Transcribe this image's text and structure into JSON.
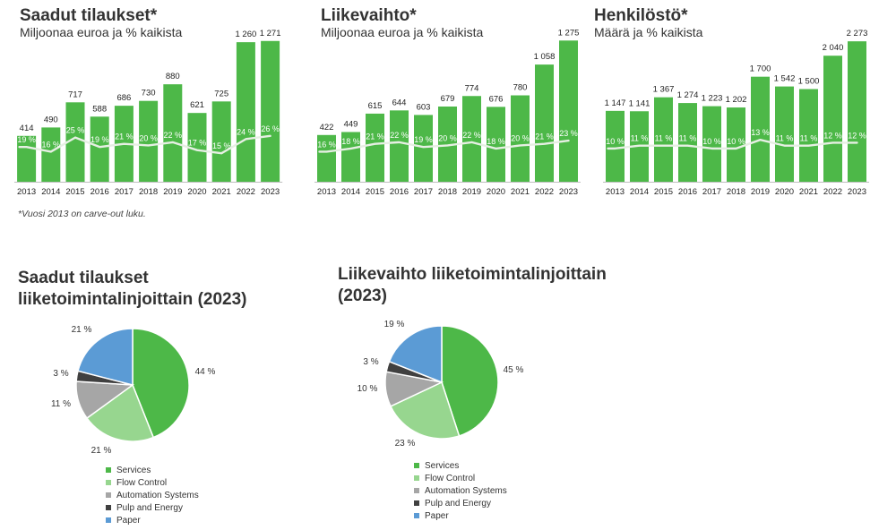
{
  "note": "*Vuosi 2013 on carve-out luku.",
  "colors": {
    "bar": "#4db848",
    "line": "#e6efe3",
    "services": "#4db848",
    "flow_control": "#97d68f",
    "automation_systems": "#a6a6a6",
    "pulp_and_energy": "#404040",
    "paper": "#5b9bd5"
  },
  "chart_data": [
    {
      "type": "bar",
      "title": "Saadut tilaukset*",
      "subtitle": "Miljoonaa euroa ja % kaikista",
      "categories": [
        "2013",
        "2014",
        "2015",
        "2016",
        "2017",
        "2018",
        "2019",
        "2020",
        "2021",
        "2022",
        "2023"
      ],
      "values": [
        414,
        490,
        717,
        588,
        686,
        730,
        880,
        621,
        725,
        1260,
        1271
      ],
      "value_labels": [
        "414",
        "490",
        "717",
        "588",
        "686",
        "730",
        "880",
        "621",
        "725",
        "1 260",
        "1 271"
      ],
      "share_pct": [
        19,
        16,
        25,
        19,
        21,
        20,
        22,
        17,
        15,
        24,
        26
      ],
      "share_labels": [
        "19 %",
        "16 %",
        "25 %",
        "19 %",
        "21 %",
        "20 %",
        "22 %",
        "17 %",
        "15 %",
        "24 %",
        "26 %"
      ],
      "ylim": [
        0,
        1350
      ]
    },
    {
      "type": "bar",
      "title": "Liikevaihto*",
      "subtitle": "Miljoonaa euroa ja % kaikista",
      "categories": [
        "2013",
        "2014",
        "2015",
        "2016",
        "2017",
        "2018",
        "2019",
        "2020",
        "2021",
        "2022",
        "2023"
      ],
      "values": [
        422,
        449,
        615,
        644,
        603,
        679,
        774,
        676,
        780,
        1058,
        1275
      ],
      "value_labels": [
        "422",
        "449",
        "615",
        "644",
        "603",
        "679",
        "774",
        "676",
        "780",
        "1 058",
        "1 275"
      ],
      "share_pct": [
        16,
        18,
        21,
        22,
        19,
        20,
        22,
        18,
        20,
        21,
        23
      ],
      "share_labels": [
        "16 %",
        "18 %",
        "21 %",
        "22 %",
        "19 %",
        "20 %",
        "22 %",
        "18 %",
        "20 %",
        "21 %",
        "23 %"
      ],
      "ylim": [
        0,
        1350
      ]
    },
    {
      "type": "bar",
      "title": "Henkilöstö*",
      "subtitle": "Määrä ja % kaikista",
      "categories": [
        "2013",
        "2014",
        "2015",
        "2016",
        "2017",
        "2018",
        "2019",
        "2020",
        "2021",
        "2022",
        "2023"
      ],
      "values": [
        1147,
        1141,
        1367,
        1274,
        1223,
        1202,
        1700,
        1542,
        1500,
        2040,
        2273
      ],
      "value_labels": [
        "1 147",
        "1 141",
        "1 367",
        "1 274",
        "1 223",
        "1 202",
        "1 700",
        "1 542",
        "1 500",
        "2 040",
        "2 273"
      ],
      "share_pct": [
        10,
        11,
        11,
        11,
        10,
        10,
        13,
        11,
        11,
        12,
        12
      ],
      "share_labels": [
        "10 %",
        "11 %",
        "11 %",
        "11 %",
        "10 %",
        "10 %",
        "13 %",
        "11 %",
        "11 %",
        "12 %",
        "12 %"
      ],
      "ylim": [
        0,
        2420
      ]
    },
    {
      "type": "pie",
      "title": "Saadut tilaukset liiketoimintalinjoittain (2023)",
      "legend": [
        "Services",
        "Flow Control",
        "Automation Systems",
        "Pulp and Energy",
        "Paper"
      ],
      "values": [
        44,
        21,
        11,
        3,
        21
      ],
      "value_labels": [
        "44 %",
        "21 %",
        "11 %",
        "3 %",
        "21 %"
      ]
    },
    {
      "type": "pie",
      "title": "Liikevaihto liiketoimintalinjoittain (2023)",
      "legend": [
        "Services",
        "Flow Control",
        "Automation Systems",
        "Pulp and Energy",
        "Paper"
      ],
      "values": [
        45,
        23,
        10,
        3,
        19
      ],
      "value_labels": [
        "45 %",
        "23 %",
        "10 %",
        "3 %",
        "19 %"
      ]
    }
  ]
}
